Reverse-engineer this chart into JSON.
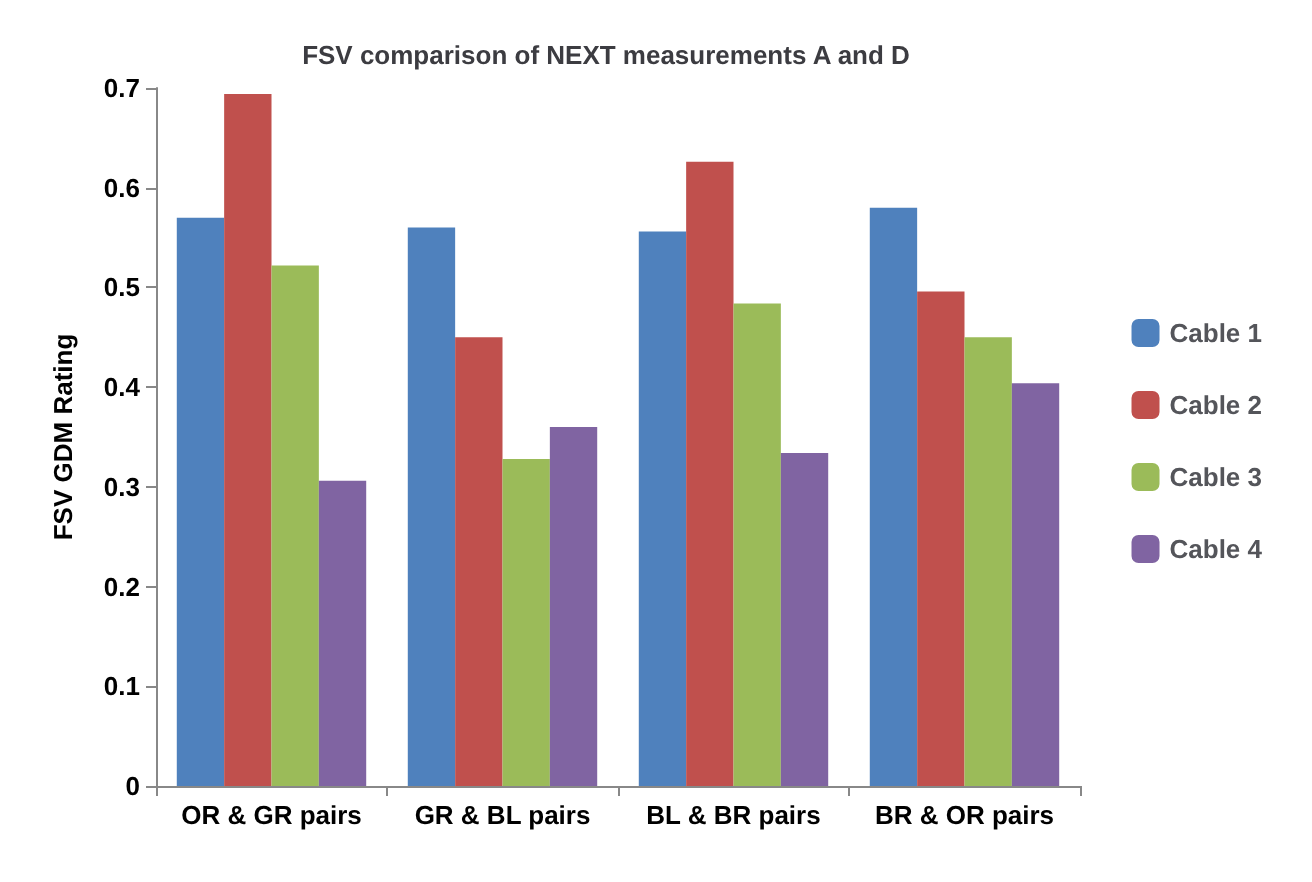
{
  "chart_data": {
    "type": "bar",
    "title": "FSV comparison of NEXT measurements A and D",
    "ylabel": "FSV GDM Rating",
    "categories": [
      "OR & GR pairs",
      "GR & BL pairs",
      "BL & BR pairs",
      "BR & OR pairs"
    ],
    "series": [
      {
        "name": "Cable 1",
        "color": "#4f81bd",
        "values": [
          0.57,
          0.56,
          0.556,
          0.58
        ]
      },
      {
        "name": "Cable 2",
        "color": "#c0504d",
        "values": [
          0.694,
          0.45,
          0.626,
          0.496
        ]
      },
      {
        "name": "Cable 3",
        "color": "#9bbb59",
        "values": [
          0.522,
          0.328,
          0.484,
          0.45
        ]
      },
      {
        "name": "Cable 4",
        "color": "#8064a2",
        "values": [
          0.306,
          0.36,
          0.334,
          0.404
        ]
      }
    ],
    "ylim": [
      0,
      0.7
    ],
    "yticks": [
      0,
      0.1,
      0.2,
      0.3,
      0.4,
      0.5,
      0.6,
      0.7
    ],
    "grid": false,
    "legend": "right"
  }
}
